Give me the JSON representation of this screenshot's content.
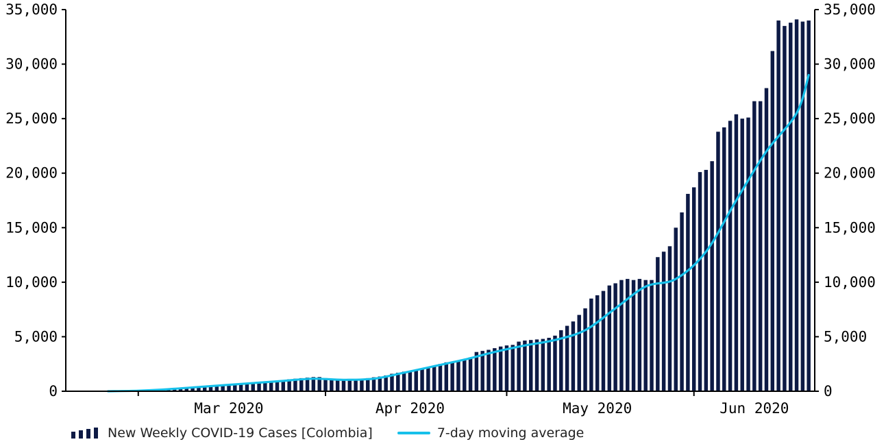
{
  "chart_data": {
    "type": "bar",
    "title": "",
    "xlabel": "",
    "ylabel": "",
    "ylim": [
      0,
      35000
    ],
    "y_ticks": [
      "0",
      "5,000",
      "10,000",
      "15,000",
      "20,000",
      "25,000",
      "30,000",
      "35,000"
    ],
    "y_ticks_right": [
      "0",
      "5,000",
      "10,000",
      "15,000",
      "20,000",
      "25,000",
      "30,000",
      "35,000"
    ],
    "x_tick_labels": [
      "Mar 2020",
      "Apr 2020",
      "May 2020",
      "Jun 2020"
    ],
    "x_range": [
      "2020-02-18",
      "2020-06-21"
    ],
    "grid": false,
    "legend_position": "bottom",
    "colors": {
      "bars": "#0d1a45",
      "line": "#16c0ea"
    },
    "series": [
      {
        "name": "New Weekly COVID-19 Cases [Colombia]",
        "type": "bar",
        "x": [
          "2020-02-25",
          "2020-02-26",
          "2020-02-27",
          "2020-02-28",
          "2020-02-29",
          "2020-03-01",
          "2020-03-02",
          "2020-03-03",
          "2020-03-04",
          "2020-03-05",
          "2020-03-06",
          "2020-03-07",
          "2020-03-08",
          "2020-03-09",
          "2020-03-10",
          "2020-03-11",
          "2020-03-12",
          "2020-03-13",
          "2020-03-14",
          "2020-03-15",
          "2020-03-16",
          "2020-03-17",
          "2020-03-18",
          "2020-03-19",
          "2020-03-20",
          "2020-03-21",
          "2020-03-22",
          "2020-03-23",
          "2020-03-24",
          "2020-03-25",
          "2020-03-26",
          "2020-03-27",
          "2020-03-28",
          "2020-03-29",
          "2020-03-30",
          "2020-03-31",
          "2020-04-01",
          "2020-04-02",
          "2020-04-03",
          "2020-04-04",
          "2020-04-05",
          "2020-04-06",
          "2020-04-07",
          "2020-04-08",
          "2020-04-09",
          "2020-04-10",
          "2020-04-11",
          "2020-04-12",
          "2020-04-13",
          "2020-04-14",
          "2020-04-15",
          "2020-04-16",
          "2020-04-17",
          "2020-04-18",
          "2020-04-19",
          "2020-04-20",
          "2020-04-21",
          "2020-04-22",
          "2020-04-23",
          "2020-04-24",
          "2020-04-25",
          "2020-04-26",
          "2020-04-27",
          "2020-04-28",
          "2020-04-29",
          "2020-04-30",
          "2020-05-01",
          "2020-05-02",
          "2020-05-03",
          "2020-05-04",
          "2020-05-05",
          "2020-05-06",
          "2020-05-07",
          "2020-05-08",
          "2020-05-09",
          "2020-05-10",
          "2020-05-11",
          "2020-05-12",
          "2020-05-13",
          "2020-05-14",
          "2020-05-15",
          "2020-05-16",
          "2020-05-17",
          "2020-05-18",
          "2020-05-19",
          "2020-05-20",
          "2020-05-21",
          "2020-05-22",
          "2020-05-23",
          "2020-05-24",
          "2020-05-25",
          "2020-05-26",
          "2020-05-27",
          "2020-05-28",
          "2020-05-29",
          "2020-05-30",
          "2020-05-31",
          "2020-06-01",
          "2020-06-02",
          "2020-06-03",
          "2020-06-04",
          "2020-06-05",
          "2020-06-06",
          "2020-06-07",
          "2020-06-08",
          "2020-06-09",
          "2020-06-10",
          "2020-06-11",
          "2020-06-12",
          "2020-06-13",
          "2020-06-14",
          "2020-06-15",
          "2020-06-16",
          "2020-06-17",
          "2020-06-18",
          "2020-06-19",
          "2020-06-20"
        ],
        "values": [
          10,
          10,
          20,
          20,
          30,
          40,
          60,
          80,
          100,
          130,
          170,
          200,
          230,
          270,
          300,
          330,
          350,
          400,
          450,
          500,
          550,
          600,
          650,
          700,
          750,
          800,
          850,
          900,
          950,
          1000,
          1100,
          1150,
          1200,
          1250,
          1300,
          1300,
          1200,
          1150,
          1100,
          1100,
          1080,
          1100,
          1150,
          1200,
          1280,
          1350,
          1450,
          1600,
          1700,
          1800,
          1850,
          1900,
          2000,
          2150,
          2350,
          2500,
          2650,
          2700,
          2800,
          2900,
          3100,
          3600,
          3700,
          3800,
          3950,
          4100,
          4200,
          4250,
          4550,
          4650,
          4700,
          4750,
          4800,
          4900,
          5100,
          5600,
          6000,
          6400,
          7000,
          7600,
          8500,
          8800,
          9200,
          9700,
          9900,
          10200,
          10300,
          10200,
          10300,
          10200,
          10200,
          12300,
          12800,
          13300,
          15000,
          16400,
          18100,
          18700,
          20100,
          20300,
          21100,
          23800,
          24200,
          24800,
          25400,
          25000,
          25100,
          26600,
          26600,
          27800,
          31200,
          34000,
          33500,
          33800,
          34100,
          33900,
          34000
        ]
      },
      {
        "name": "7-day moving average",
        "type": "line",
        "x": [
          "2020-02-25",
          "2020-03-01",
          "2020-03-05",
          "2020-03-10",
          "2020-03-15",
          "2020-03-20",
          "2020-03-25",
          "2020-03-30",
          "2020-04-04",
          "2020-04-09",
          "2020-04-14",
          "2020-04-19",
          "2020-04-24",
          "2020-04-29",
          "2020-05-04",
          "2020-05-09",
          "2020-05-14",
          "2020-05-19",
          "2020-05-24",
          "2020-05-29",
          "2020-06-03",
          "2020-06-08",
          "2020-06-13",
          "2020-06-18",
          "2020-06-20"
        ],
        "values": [
          0,
          50,
          150,
          350,
          550,
          750,
          950,
          1150,
          1050,
          1150,
          1700,
          2300,
          2900,
          3600,
          4200,
          4700,
          5600,
          7600,
          9600,
          10300,
          12800,
          17500,
          22000,
          25500,
          29000
        ]
      }
    ]
  }
}
